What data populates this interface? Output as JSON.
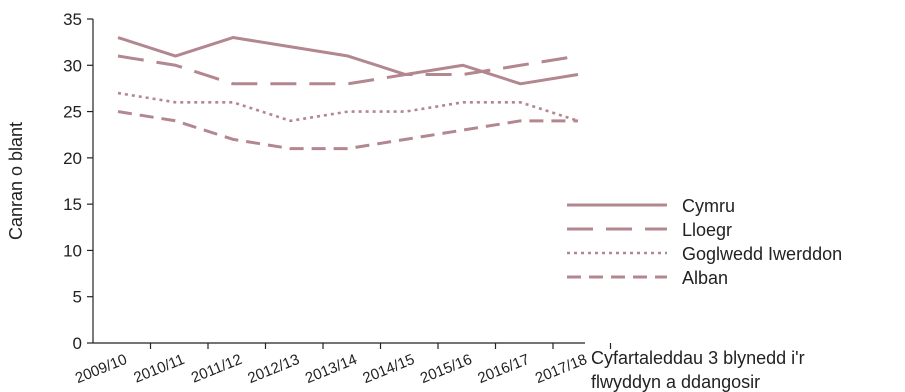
{
  "chart_data": {
    "type": "line",
    "title": "",
    "ylabel": "Canran o blant",
    "xlabel_lines": [
      "Cyfartaleddau 3 blynedd i'r",
      "flwyddyn a ddangosir"
    ],
    "categories": [
      "2009/10",
      "2010/11",
      "2011/12",
      "2012/13",
      "2013/14",
      "2014/15",
      "2015/16",
      "2016/17",
      "2017/18"
    ],
    "ylim": [
      0,
      35
    ],
    "yticks": [
      "0",
      "5",
      "10",
      "15",
      "20",
      "25",
      "30",
      "35"
    ],
    "grid": false,
    "legend_position": "right",
    "series": [
      {
        "name": "Cymru",
        "style": "solid",
        "color": "#b2878f",
        "values": [
          33,
          31,
          33,
          32,
          31,
          29,
          30,
          28,
          29
        ]
      },
      {
        "name": "Lloegr",
        "style": "longdash",
        "color": "#b2878f",
        "values": [
          31,
          30,
          28,
          28,
          28,
          29,
          29,
          30,
          31
        ]
      },
      {
        "name": "Goglwedd Iwerddon",
        "style": "dotted",
        "color": "#b2878f",
        "values": [
          27,
          26,
          26,
          24,
          25,
          25,
          26,
          26,
          24
        ]
      },
      {
        "name": "Alban",
        "style": "dashed",
        "color": "#b2878f",
        "values": [
          25,
          24,
          22,
          21,
          21,
          22,
          23,
          24,
          24
        ]
      }
    ]
  }
}
